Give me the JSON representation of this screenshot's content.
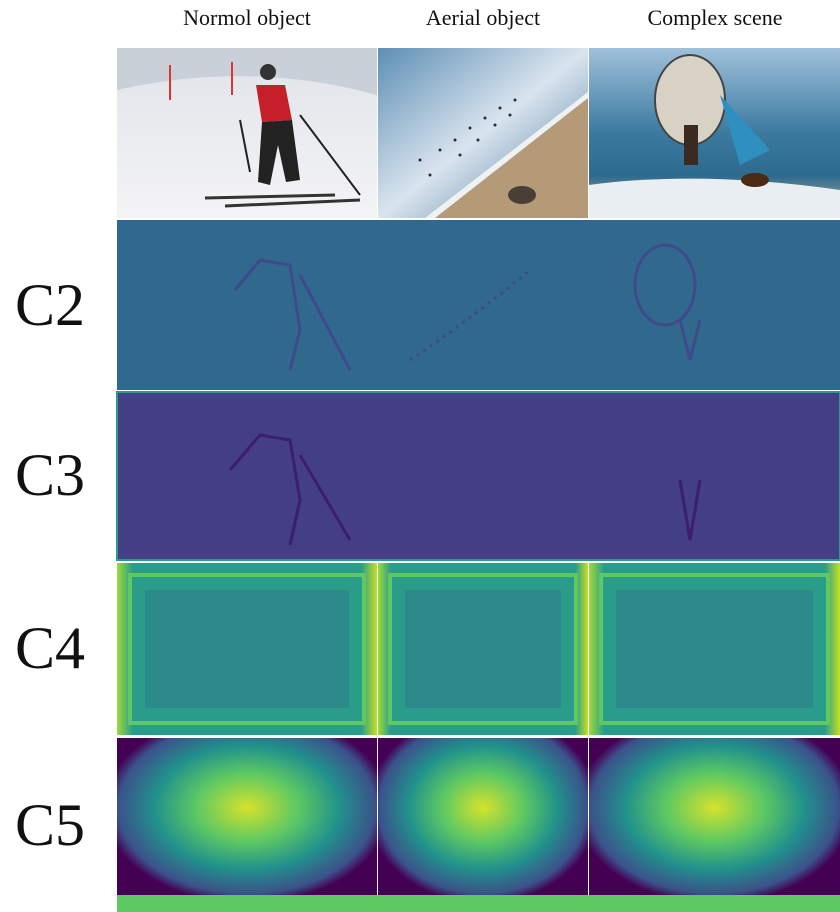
{
  "columns": [
    "Normol object",
    "Aerial object",
    "Complex scene"
  ],
  "rows": [
    "C2",
    "C3",
    "C4",
    "C5"
  ]
}
